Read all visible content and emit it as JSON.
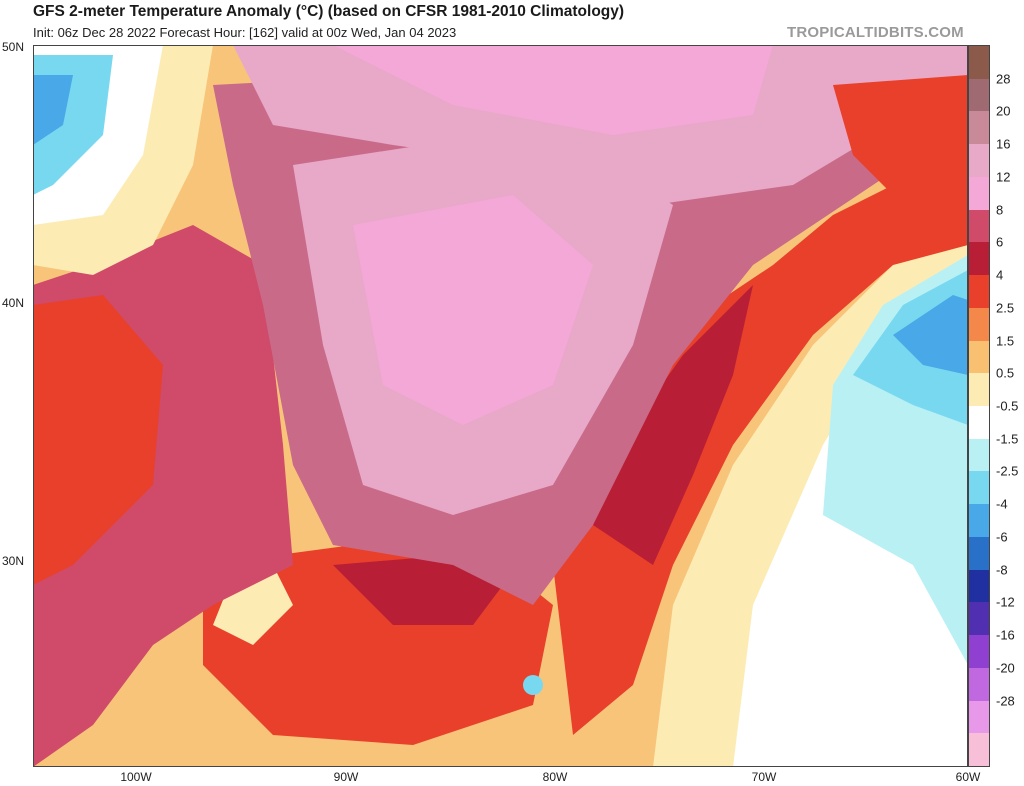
{
  "header": {
    "title": "GFS 2-meter Temperature Anomaly (°C) (based on CFSR 1981-2010 Climatology)",
    "subtitle": "Init: 06z Dec 28 2022   Forecast Hour: [162]   valid at 00z Wed, Jan 04 2023",
    "credit": "TROPICALTIDBITS.COM"
  },
  "map": {
    "lat_labels": [
      "50N",
      "40N",
      "30N"
    ],
    "lon_labels": [
      "100W",
      "90W",
      "80W",
      "70W",
      "60W"
    ]
  },
  "colorbar": {
    "labels": [
      "28",
      "20",
      "16",
      "12",
      "8",
      "6",
      "4",
      "2.5",
      "1.5",
      "0.5",
      "-0.5",
      "-1.5",
      "-2.5",
      "-4",
      "-6",
      "-8",
      "-12",
      "-16",
      "-20",
      "-28"
    ],
    "colors": [
      "#8c5a4a",
      "#a06a72",
      "#c88a98",
      "#e8a8c8",
      "#f4a8d8",
      "#d04a6a",
      "#b81e36",
      "#e8402a",
      "#f4884a",
      "#f8c070",
      "#fcecb4",
      "#ffffff",
      "#b8f0f4",
      "#78d8f0",
      "#48a8e8",
      "#2870c8",
      "#2030a0",
      "#5030b0",
      "#9040d0",
      "#c068e0",
      "#e898e8",
      "#f8c0d8"
    ]
  }
}
